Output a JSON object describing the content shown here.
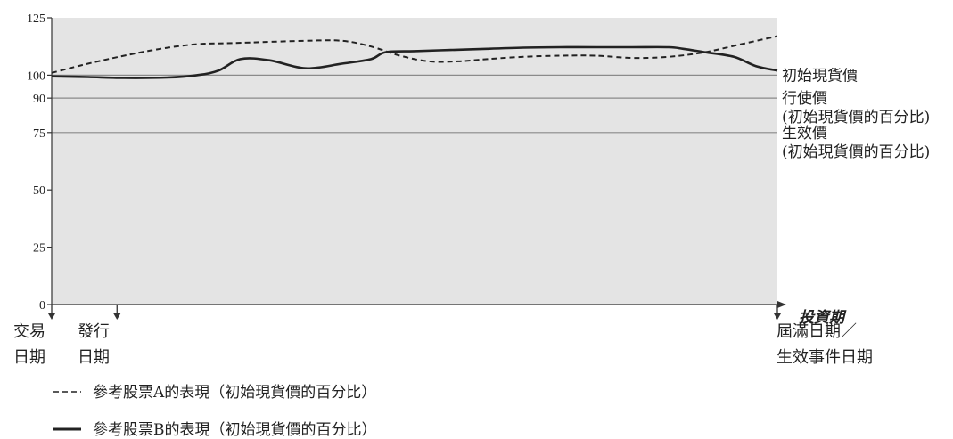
{
  "chart_data": {
    "type": "line",
    "x_title": "投資期",
    "y_ticks": [
      0,
      25,
      50,
      75,
      90,
      100,
      125
    ],
    "ylim": [
      0,
      125
    ],
    "xlim": [
      0,
      100
    ],
    "grid": false,
    "reference_lines": [
      {
        "value": 100,
        "label": [
          "初始現貨價"
        ]
      },
      {
        "value": 90,
        "label": [
          "行使價",
          "(初始現貨價的百分比)"
        ]
      },
      {
        "value": 75,
        "label": [
          "生效價",
          "(初始現貨價的百分比)"
        ]
      }
    ],
    "x_markers": [
      {
        "x": 0,
        "label": [
          "交易",
          "日期"
        ]
      },
      {
        "x": 9,
        "label": [
          "發行",
          "日期"
        ]
      },
      {
        "x": 100,
        "label": [
          "屆滿日期／",
          "生效事件日期"
        ]
      }
    ],
    "series": [
      {
        "name": "參考股票A的表現（初始現貨價的百分比）",
        "style": "dashed",
        "x": [
          0,
          5,
          10,
          15,
          20,
          25,
          30,
          35,
          40,
          44,
          48,
          52,
          56,
          60,
          65,
          70,
          75,
          80,
          85,
          90,
          95,
          100
        ],
        "y": [
          101,
          105,
          108.5,
          111.5,
          113.5,
          114,
          114.5,
          115,
          115,
          112.5,
          108.5,
          106,
          106,
          107,
          108,
          108.5,
          108.5,
          107.5,
          108,
          110,
          113.5,
          117
        ]
      },
      {
        "name": "參考股票B的表現（初始現貨價的百分比）",
        "style": "solid",
        "x": [
          0,
          5,
          10,
          16,
          20,
          23,
          26,
          30,
          35,
          40,
          44,
          46,
          50,
          55,
          60,
          65,
          70,
          75,
          80,
          85,
          87,
          90,
          94,
          97,
          100
        ],
        "y": [
          99.5,
          99.2,
          98.8,
          99,
          100,
          102,
          107,
          106.5,
          103,
          105,
          107,
          110,
          110.5,
          111,
          111.5,
          112,
          112.2,
          112.2,
          112.2,
          112.2,
          111.5,
          110,
          108,
          104,
          102
        ]
      }
    ]
  }
}
